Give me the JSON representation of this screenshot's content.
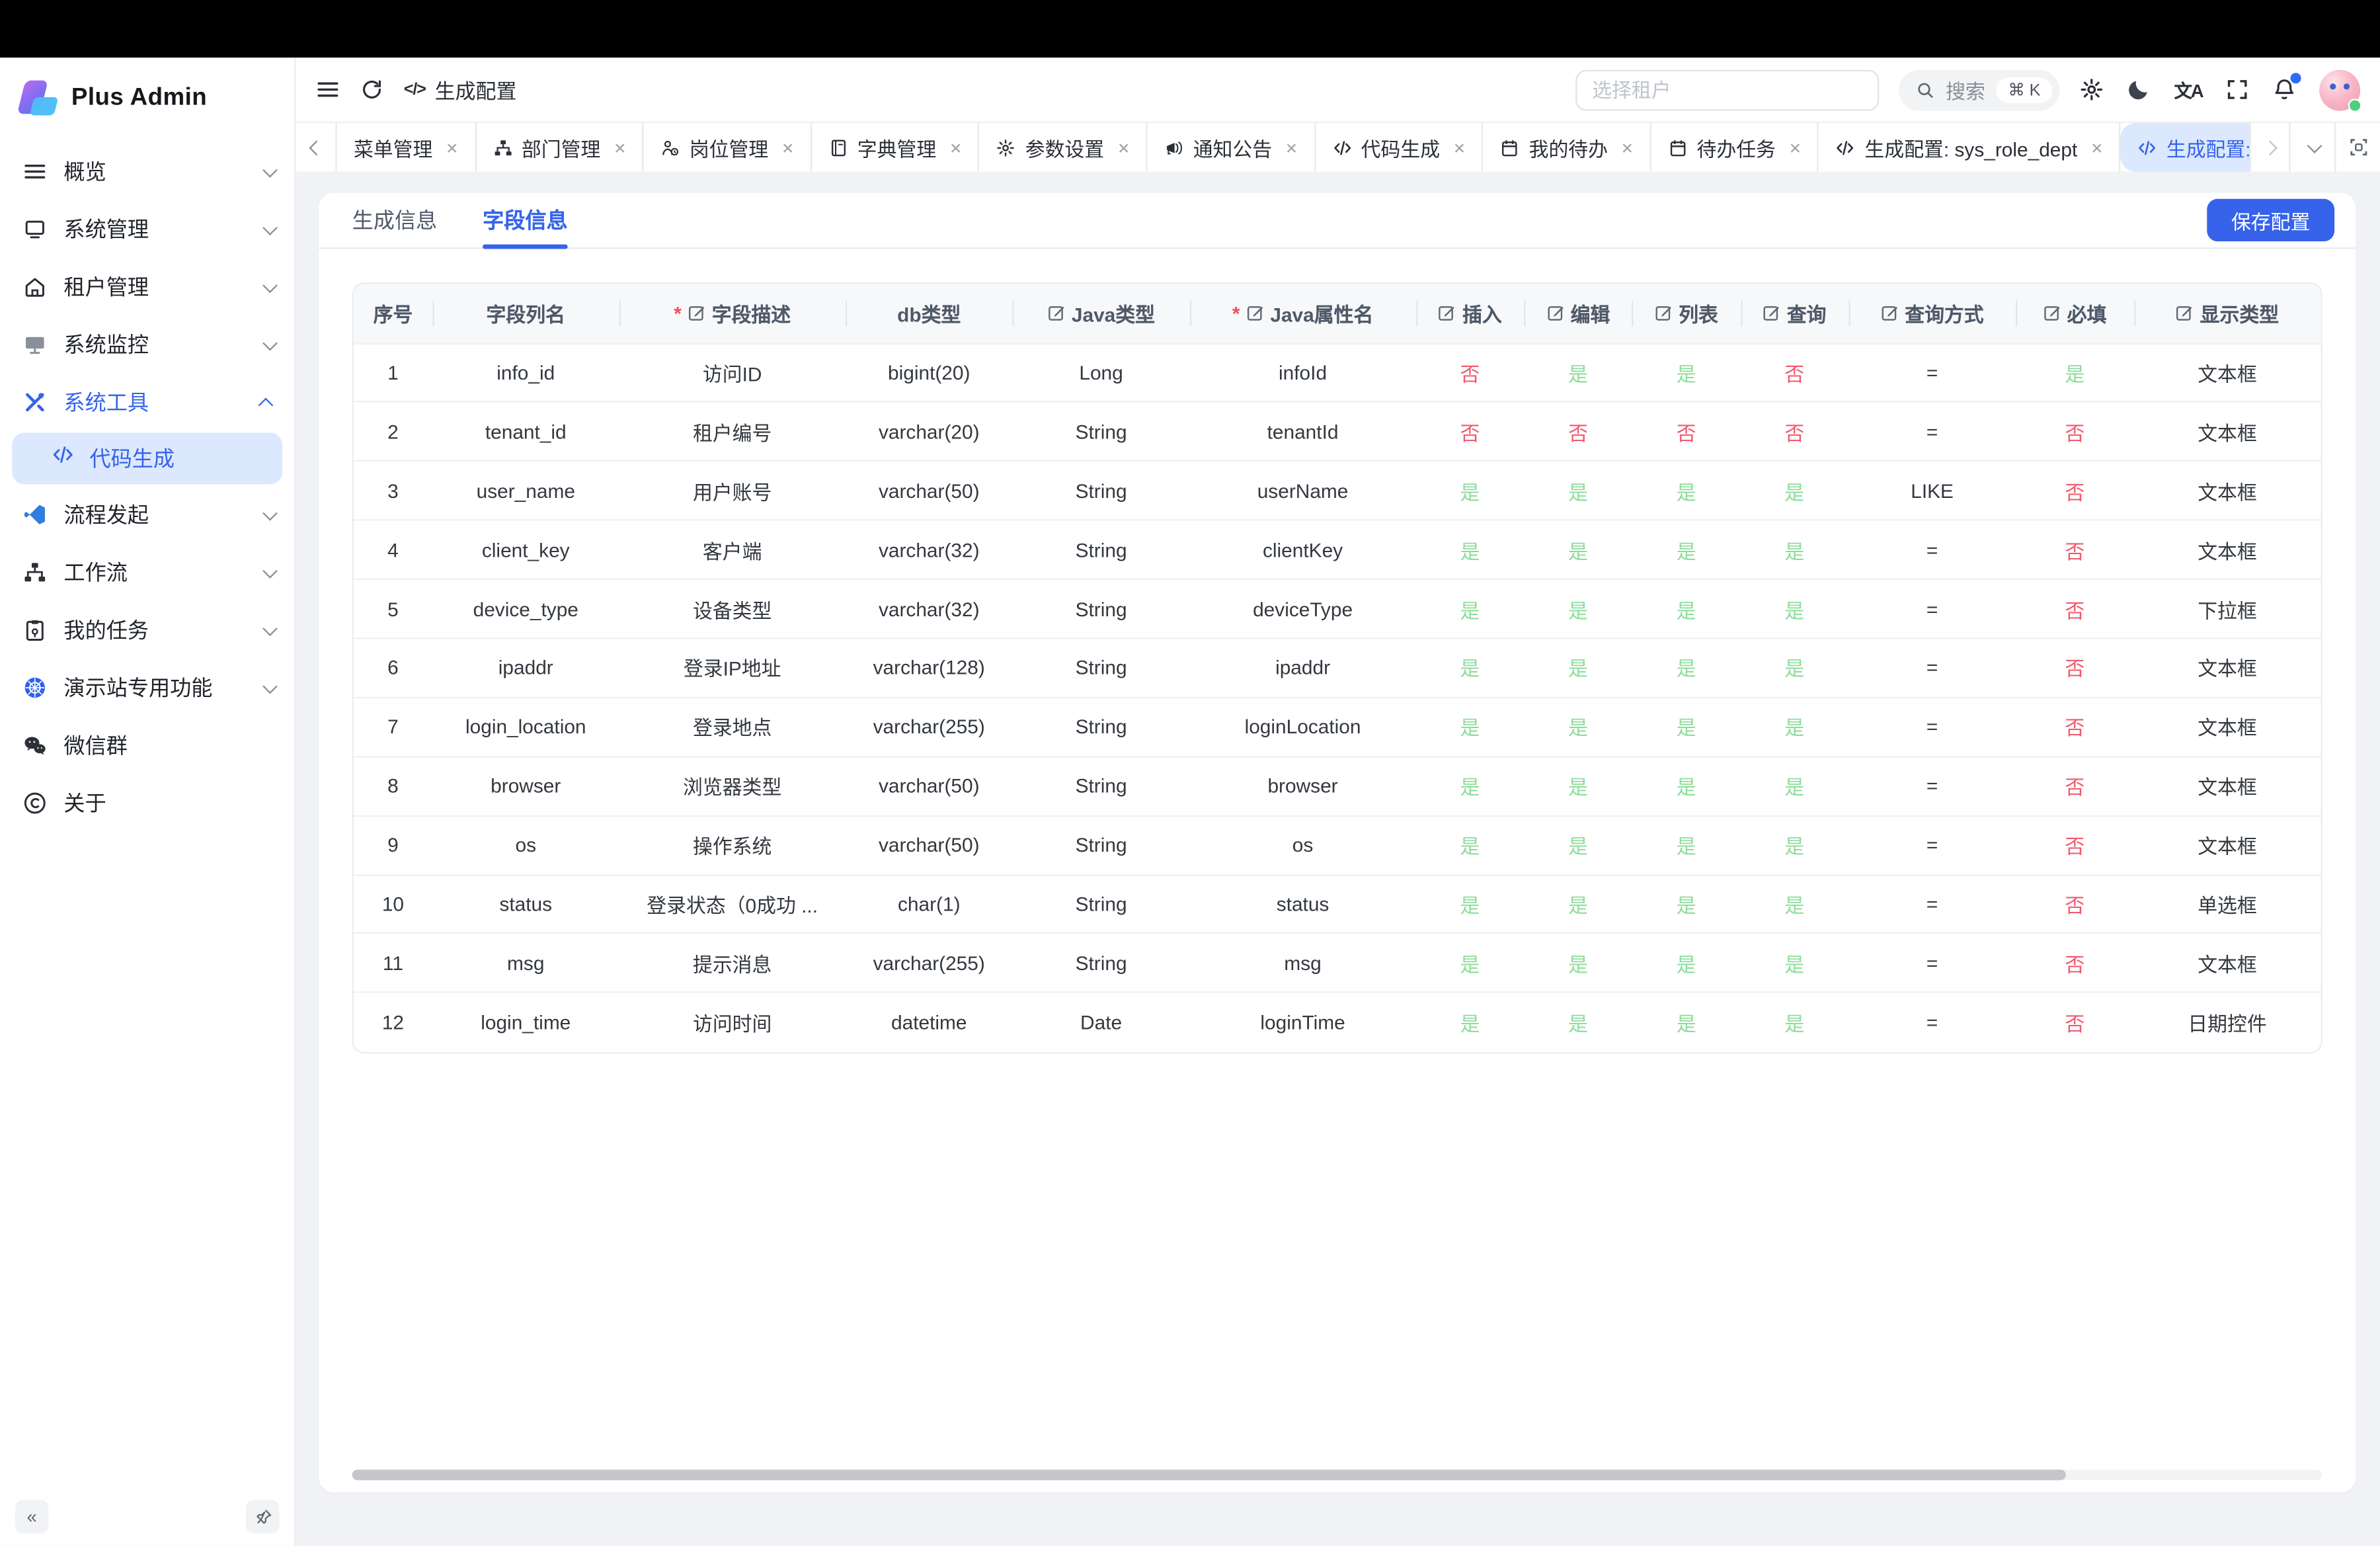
{
  "app_title": "Plus Admin",
  "colors": {
    "primary": "#3663ea",
    "active_bg": "#dbe8fd",
    "yes_green": "#8edc9b",
    "no_red": "#f1596e",
    "save_button_bg": "#3663ea"
  },
  "sidebar": {
    "logo_text": "Plus Admin",
    "items": [
      {
        "label": "概览",
        "icon": "menu-lines-icon",
        "chevron": "down"
      },
      {
        "label": "系统管理",
        "icon": "system-icon",
        "chevron": "down"
      },
      {
        "label": "租户管理",
        "icon": "tenant-home-icon",
        "chevron": "down"
      },
      {
        "label": "系统监控",
        "icon": "monitor-icon",
        "chevron": "down"
      },
      {
        "label": "系统工具",
        "icon": "tools-icon",
        "chevron": "up",
        "active": true,
        "children": [
          {
            "label": "代码生成",
            "icon": "code-icon",
            "active": true
          }
        ]
      },
      {
        "label": "流程发起",
        "icon": "flow-icon",
        "chevron": "down"
      },
      {
        "label": "工作流",
        "icon": "sitemap-icon",
        "chevron": "down"
      },
      {
        "label": "我的任务",
        "icon": "tasks-icon",
        "chevron": "down"
      },
      {
        "label": "演示站专用功能",
        "icon": "demo-globe-icon",
        "chevron": "down"
      },
      {
        "label": "微信群",
        "icon": "wechat-icon",
        "chevron": null
      },
      {
        "label": "关于",
        "icon": "about-icon",
        "chevron": null
      }
    ]
  },
  "header": {
    "breadcrumb_title": "生成配置",
    "tenant_placeholder": "选择租户",
    "search_label": "搜索",
    "search_shortcut": "⌘ K"
  },
  "tabbar": {
    "tabs": [
      {
        "label": "菜单管理",
        "icon": null,
        "closable": true
      },
      {
        "label": "部门管理",
        "icon": "sitemap-icon",
        "closable": true
      },
      {
        "label": "岗位管理",
        "icon": "badge-person-icon",
        "closable": true
      },
      {
        "label": "字典管理",
        "icon": "book-icon",
        "closable": true
      },
      {
        "label": "参数设置",
        "icon": "gear-icon",
        "closable": true
      },
      {
        "label": "通知公告",
        "icon": "megaphone-icon",
        "closable": true
      },
      {
        "label": "代码生成",
        "icon": "code-icon",
        "closable": true
      },
      {
        "label": "我的待办",
        "icon": "calendar-icon",
        "closable": true
      },
      {
        "label": "待办任务",
        "icon": "calendar-icon",
        "closable": true
      },
      {
        "label": "生成配置: sys_role_dept",
        "icon": "code-icon",
        "closable": true
      },
      {
        "label": "生成配置: sys_lo",
        "icon": "code-icon",
        "closable": false,
        "active": true
      }
    ]
  },
  "panel": {
    "tabs": [
      {
        "label": "生成信息",
        "active": false
      },
      {
        "label": "字段信息",
        "active": true
      }
    ],
    "save_label": "保存配置"
  },
  "table": {
    "columns": [
      {
        "label": "序号",
        "required": false,
        "editable": false,
        "width": "4%"
      },
      {
        "label": "字段列名",
        "required": false,
        "editable": false,
        "width": "9.5%"
      },
      {
        "label": "字段描述",
        "required": true,
        "editable": true,
        "width": "11.5%"
      },
      {
        "label": "db类型",
        "required": false,
        "editable": false,
        "width": "8.5%"
      },
      {
        "label": "Java类型",
        "required": false,
        "editable": true,
        "width": "9%"
      },
      {
        "label": "Java属性名",
        "required": true,
        "editable": true,
        "width": "11.5%"
      },
      {
        "label": "插入",
        "required": false,
        "editable": true,
        "width": "5.5%"
      },
      {
        "label": "编辑",
        "required": false,
        "editable": true,
        "width": "5.5%"
      },
      {
        "label": "列表",
        "required": false,
        "editable": true,
        "width": "5.5%"
      },
      {
        "label": "查询",
        "required": false,
        "editable": true,
        "width": "5.5%"
      },
      {
        "label": "查询方式",
        "required": false,
        "editable": true,
        "width": "8.5%"
      },
      {
        "label": "必填",
        "required": false,
        "editable": true,
        "width": "6%"
      },
      {
        "label": "显示类型",
        "required": false,
        "editable": true,
        "width": "9.5%"
      }
    ],
    "rows": [
      [
        "1",
        "info_id",
        "访问ID",
        "bigint(20)",
        "Long",
        "infoId",
        "否",
        "是",
        "是",
        "否",
        "=",
        "是",
        "文本框"
      ],
      [
        "2",
        "tenant_id",
        "租户编号",
        "varchar(20)",
        "String",
        "tenantId",
        "否",
        "否",
        "否",
        "否",
        "=",
        "否",
        "文本框"
      ],
      [
        "3",
        "user_name",
        "用户账号",
        "varchar(50)",
        "String",
        "userName",
        "是",
        "是",
        "是",
        "是",
        "LIKE",
        "否",
        "文本框"
      ],
      [
        "4",
        "client_key",
        "客户端",
        "varchar(32)",
        "String",
        "clientKey",
        "是",
        "是",
        "是",
        "是",
        "=",
        "否",
        "文本框"
      ],
      [
        "5",
        "device_type",
        "设备类型",
        "varchar(32)",
        "String",
        "deviceType",
        "是",
        "是",
        "是",
        "是",
        "=",
        "否",
        "下拉框"
      ],
      [
        "6",
        "ipaddr",
        "登录IP地址",
        "varchar(128)",
        "String",
        "ipaddr",
        "是",
        "是",
        "是",
        "是",
        "=",
        "否",
        "文本框"
      ],
      [
        "7",
        "login_location",
        "登录地点",
        "varchar(255)",
        "String",
        "loginLocation",
        "是",
        "是",
        "是",
        "是",
        "=",
        "否",
        "文本框"
      ],
      [
        "8",
        "browser",
        "浏览器类型",
        "varchar(50)",
        "String",
        "browser",
        "是",
        "是",
        "是",
        "是",
        "=",
        "否",
        "文本框"
      ],
      [
        "9",
        "os",
        "操作系统",
        "varchar(50)",
        "String",
        "os",
        "是",
        "是",
        "是",
        "是",
        "=",
        "否",
        "文本框"
      ],
      [
        "10",
        "status",
        "登录状态（0成功 ...",
        "char(1)",
        "String",
        "status",
        "是",
        "是",
        "是",
        "是",
        "=",
        "否",
        "单选框"
      ],
      [
        "11",
        "msg",
        "提示消息",
        "varchar(255)",
        "String",
        "msg",
        "是",
        "是",
        "是",
        "是",
        "=",
        "否",
        "文本框"
      ],
      [
        "12",
        "login_time",
        "访问时间",
        "datetime",
        "Date",
        "loginTime",
        "是",
        "是",
        "是",
        "是",
        "=",
        "否",
        "日期控件"
      ]
    ]
  }
}
